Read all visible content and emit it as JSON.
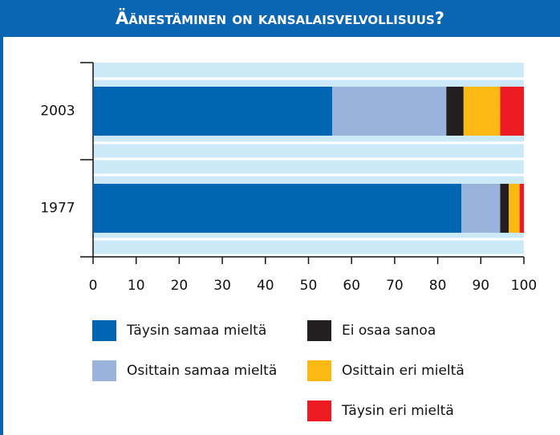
{
  "chart_data": {
    "type": "stacked_barh",
    "title": "Äänestäminen on kansalaisvelvollisuus?",
    "categories": [
      "2003",
      "1977"
    ],
    "series": [
      {
        "name": "Täysin samaa mieltä",
        "color": "#0066b3",
        "values": [
          55.5,
          85.5
        ]
      },
      {
        "name": "Osittain samaa mieltä",
        "color": "#99b3dd",
        "values": [
          26.5,
          9
        ]
      },
      {
        "name": "Ei osaa sanoa",
        "color": "#231f20",
        "values": [
          4,
          2
        ]
      },
      {
        "name": "Osittain eri mieltä",
        "color": "#fdb913",
        "values": [
          8.5,
          2.5
        ]
      },
      {
        "name": "Täysin eri mieltä",
        "color": "#ed1c24",
        "values": [
          5.5,
          1
        ]
      }
    ],
    "xlim": [
      0,
      100
    ],
    "xticks": [
      0,
      10,
      20,
      30,
      40,
      50,
      60,
      70,
      80,
      90,
      100
    ]
  }
}
